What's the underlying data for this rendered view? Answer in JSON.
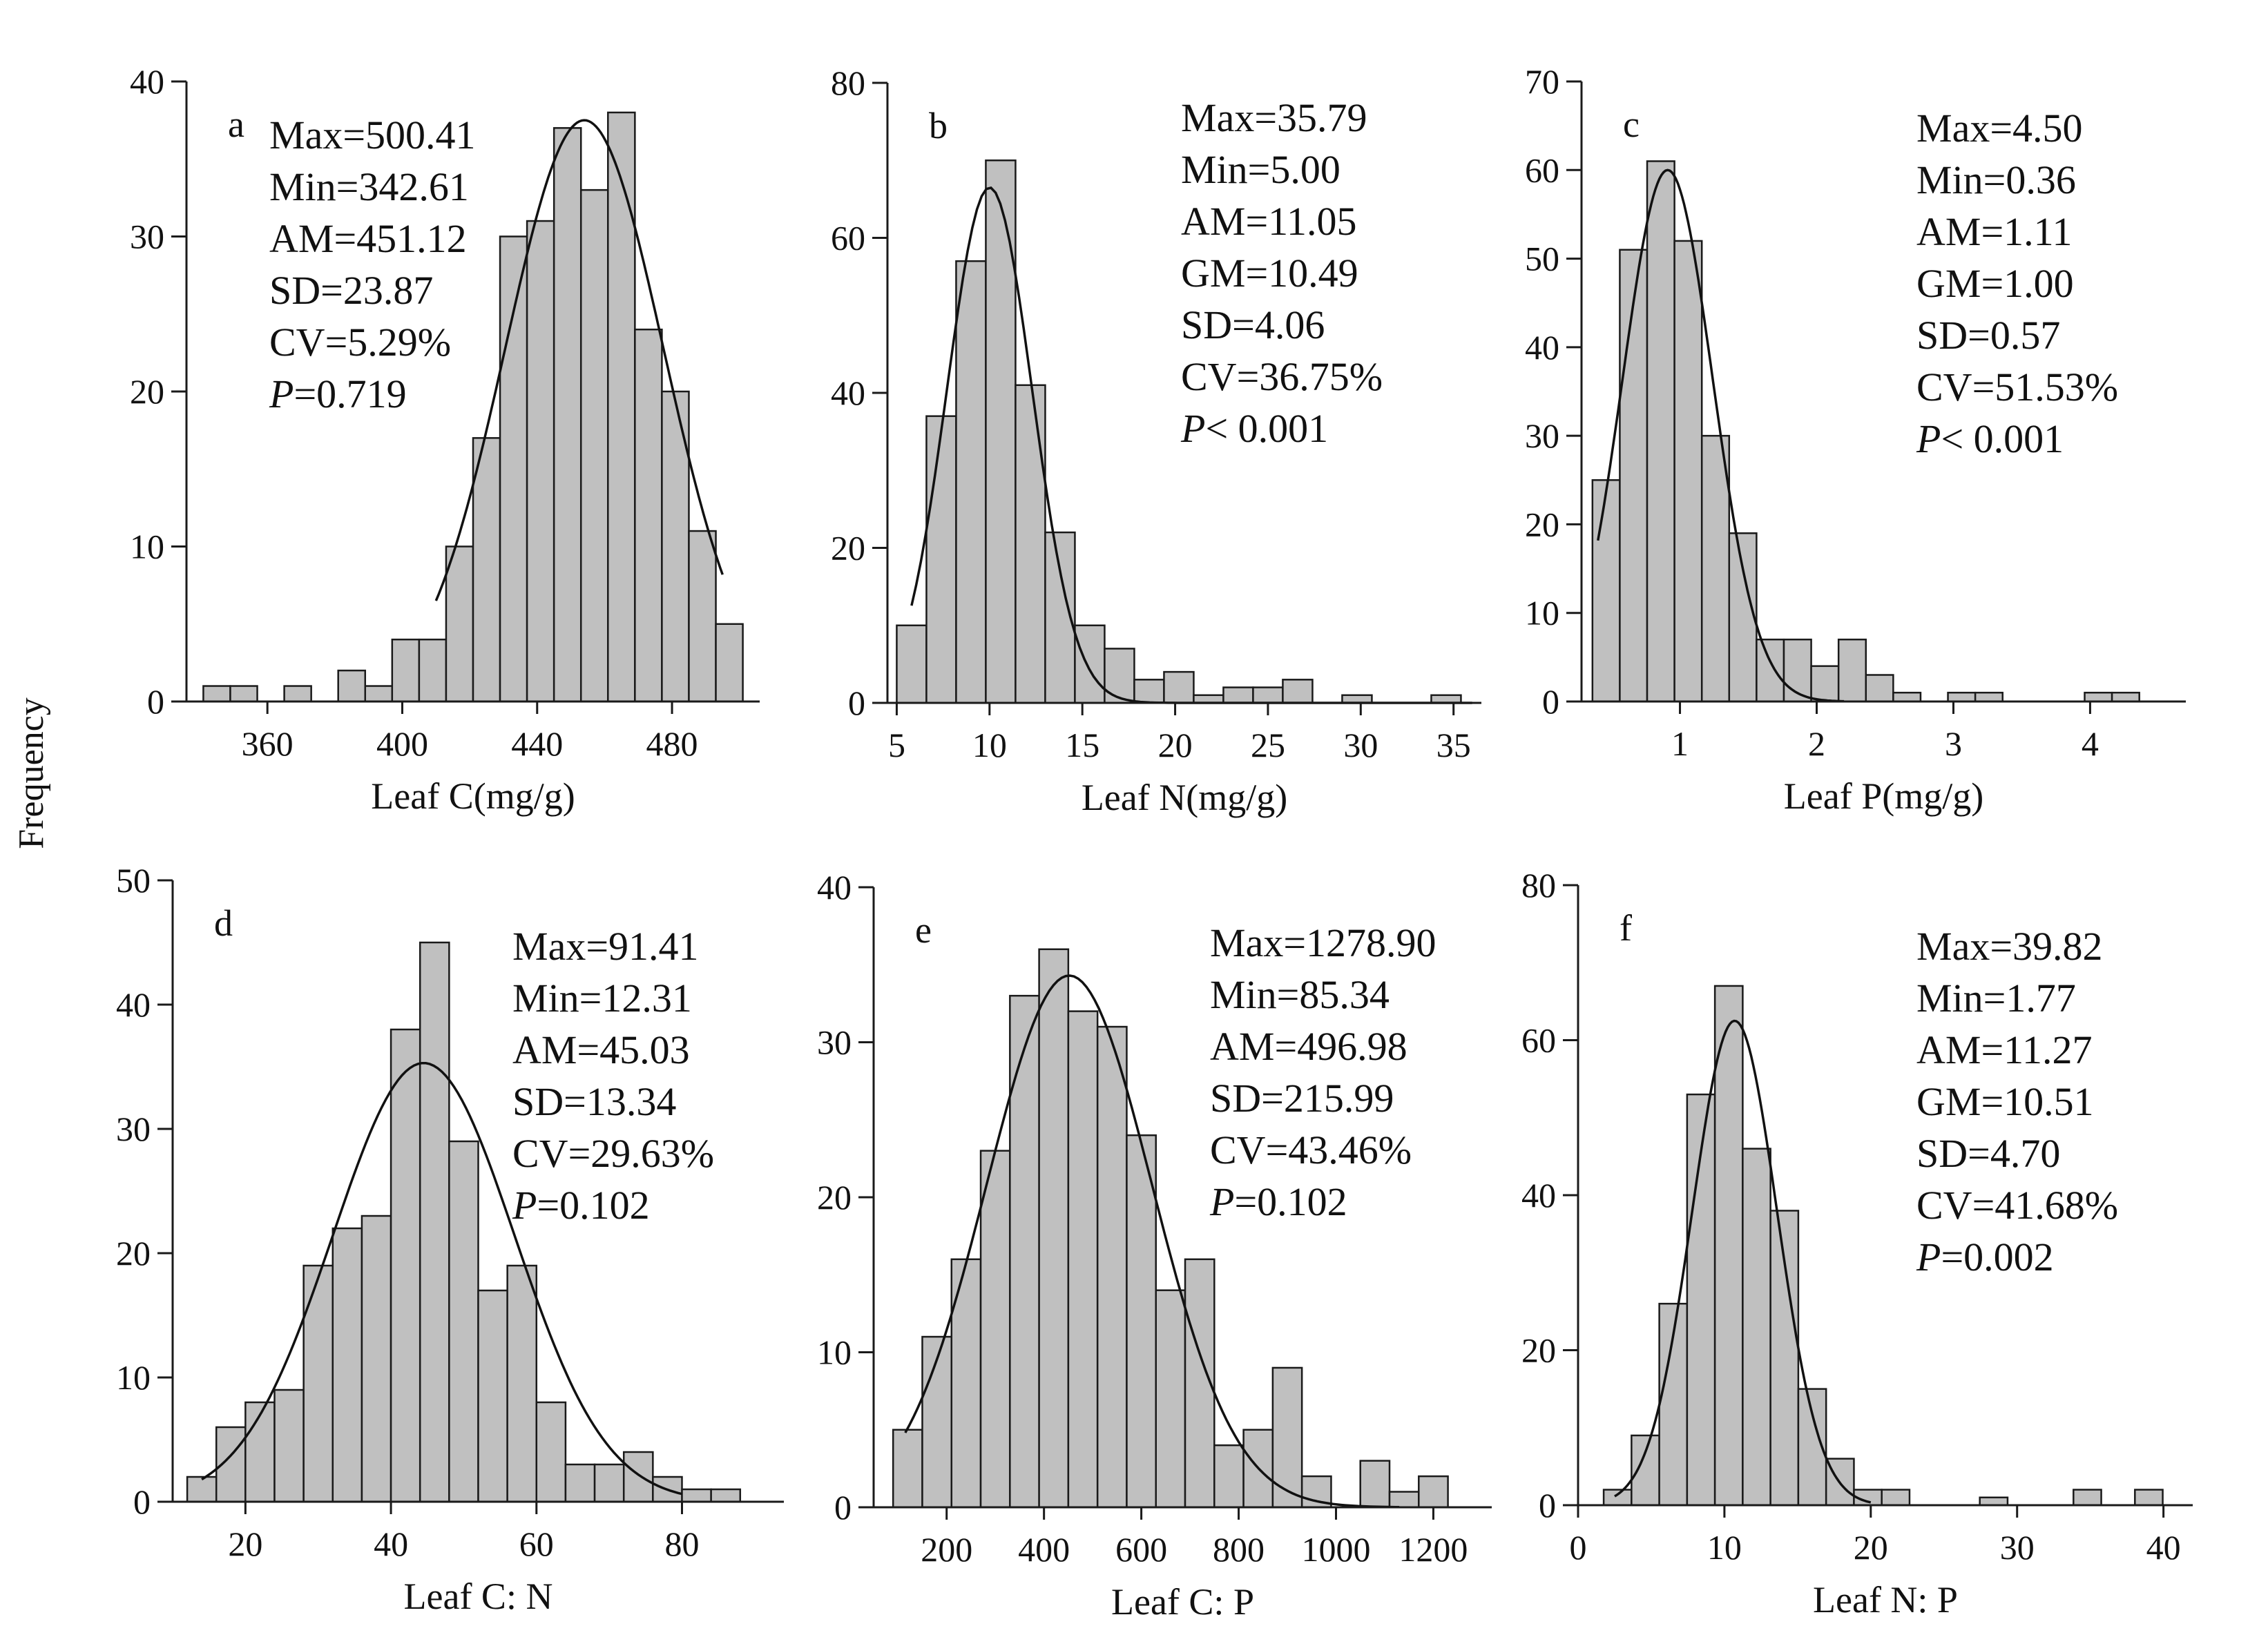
{
  "figure": {
    "ylabel": "Frequency",
    "colors": {
      "bar_fill": "#c0c0c0",
      "bar_stroke": "#1a1a1a",
      "axis": "#1a1a1a",
      "curve": "#111111"
    }
  },
  "chart_data": [
    {
      "panel": "a",
      "type": "bar",
      "xlabel": "Leaf C(mg/g)",
      "ylabel": "",
      "xlim": [
        336,
        506
      ],
      "ylim": [
        0,
        40
      ],
      "xticks": [
        360,
        400,
        440,
        480
      ],
      "yticks": [
        0,
        10,
        20,
        30,
        40
      ],
      "bin_width": 8,
      "bins": [
        {
          "x": 345,
          "count": 1
        },
        {
          "x": 353,
          "count": 1
        },
        {
          "x": 369,
          "count": 1
        },
        {
          "x": 385,
          "count": 2
        },
        {
          "x": 393,
          "count": 1
        },
        {
          "x": 401,
          "count": 4
        },
        {
          "x": 409,
          "count": 4
        },
        {
          "x": 417,
          "count": 10
        },
        {
          "x": 425,
          "count": 17
        },
        {
          "x": 433,
          "count": 30
        },
        {
          "x": 441,
          "count": 31
        },
        {
          "x": 449,
          "count": 37
        },
        {
          "x": 457,
          "count": 33
        },
        {
          "x": 465,
          "count": 38
        },
        {
          "x": 473,
          "count": 24
        },
        {
          "x": 481,
          "count": 20
        },
        {
          "x": 489,
          "count": 11
        },
        {
          "x": 497,
          "count": 5
        }
      ],
      "curve": {
        "mean": 454,
        "sd": 23.5,
        "peak": 37.5,
        "x_range": [
          410,
          495
        ]
      },
      "stats": [
        "Max=500.41",
        "Min=342.61",
        "AM=451.12",
        "SD=23.87",
        "CV=5.29%",
        "P=0.719"
      ],
      "grid": false,
      "legend": "none"
    },
    {
      "panel": "b",
      "type": "bar",
      "xlabel": "Leaf N(mg/g)",
      "ylabel": "",
      "xlim": [
        4.5,
        36.5
      ],
      "ylim": [
        0,
        80
      ],
      "xticks": [
        5,
        10,
        15,
        20,
        25,
        30,
        35
      ],
      "yticks": [
        0,
        20,
        40,
        60,
        80
      ],
      "bin_width": 1.6,
      "bins": [
        {
          "x": 5.8,
          "count": 10
        },
        {
          "x": 7.4,
          "count": 37
        },
        {
          "x": 9.0,
          "count": 57
        },
        {
          "x": 10.6,
          "count": 70
        },
        {
          "x": 12.2,
          "count": 41
        },
        {
          "x": 13.8,
          "count": 22
        },
        {
          "x": 15.4,
          "count": 10
        },
        {
          "x": 17.0,
          "count": 7
        },
        {
          "x": 18.6,
          "count": 3
        },
        {
          "x": 20.2,
          "count": 4
        },
        {
          "x": 21.8,
          "count": 1
        },
        {
          "x": 23.4,
          "count": 2
        },
        {
          "x": 25.0,
          "count": 2
        },
        {
          "x": 26.6,
          "count": 3
        },
        {
          "x": 29.8,
          "count": 1
        },
        {
          "x": 34.6,
          "count": 1
        }
      ],
      "curve": {
        "mean": 10.0,
        "sd": 2.3,
        "peak": 66.5,
        "x_range": [
          5.8,
          36
        ]
      },
      "stats": [
        "Max=35.79",
        "Min=5.00",
        "AM=11.05",
        "GM=10.49",
        "SD=4.06",
        "CV=36.75%",
        "P< 0.001"
      ],
      "grid": false,
      "legend": "none"
    },
    {
      "panel": "c",
      "type": "bar",
      "xlabel": "Leaf P(mg/g)",
      "ylabel": "",
      "xlim": [
        0.28,
        4.7
      ],
      "ylim": [
        0,
        70
      ],
      "xticks": [
        1,
        2,
        3,
        4
      ],
      "yticks": [
        0,
        10,
        20,
        30,
        40,
        50,
        60,
        70
      ],
      "bin_width": 0.2,
      "bins": [
        {
          "x": 0.46,
          "count": 25
        },
        {
          "x": 0.66,
          "count": 51
        },
        {
          "x": 0.86,
          "count": 61
        },
        {
          "x": 1.06,
          "count": 52
        },
        {
          "x": 1.26,
          "count": 30
        },
        {
          "x": 1.46,
          "count": 19
        },
        {
          "x": 1.66,
          "count": 7
        },
        {
          "x": 1.86,
          "count": 7
        },
        {
          "x": 2.06,
          "count": 4
        },
        {
          "x": 2.26,
          "count": 7
        },
        {
          "x": 2.46,
          "count": 3
        },
        {
          "x": 2.66,
          "count": 1
        },
        {
          "x": 3.06,
          "count": 1
        },
        {
          "x": 3.26,
          "count": 1
        },
        {
          "x": 4.06,
          "count": 1
        },
        {
          "x": 4.26,
          "count": 1
        }
      ],
      "curve": {
        "mean": 0.91,
        "sd": 0.33,
        "peak": 60,
        "x_range": [
          0.4,
          2.2
        ]
      },
      "stats": [
        "Max=4.50",
        "Min=0.36",
        "AM=1.11",
        "GM=1.00",
        "SD=0.57",
        "CV=51.53%",
        "P< 0.001"
      ],
      "grid": false,
      "legend": "none"
    },
    {
      "panel": "d",
      "type": "bar",
      "xlabel": "Leaf C: N",
      "ylabel": "",
      "xlim": [
        10,
        94
      ],
      "ylim": [
        0,
        50
      ],
      "xticks": [
        20,
        40,
        60,
        80
      ],
      "yticks": [
        0,
        10,
        20,
        30,
        40,
        50
      ],
      "bin_width": 4,
      "bins": [
        {
          "x": 14,
          "count": 2
        },
        {
          "x": 18,
          "count": 6
        },
        {
          "x": 22,
          "count": 8
        },
        {
          "x": 26,
          "count": 9
        },
        {
          "x": 30,
          "count": 19
        },
        {
          "x": 34,
          "count": 22
        },
        {
          "x": 38,
          "count": 23
        },
        {
          "x": 42,
          "count": 38
        },
        {
          "x": 46,
          "count": 45
        },
        {
          "x": 50,
          "count": 29
        },
        {
          "x": 54,
          "count": 17
        },
        {
          "x": 58,
          "count": 19
        },
        {
          "x": 62,
          "count": 8
        },
        {
          "x": 66,
          "count": 3
        },
        {
          "x": 70,
          "count": 3
        },
        {
          "x": 74,
          "count": 4
        },
        {
          "x": 78,
          "count": 2
        },
        {
          "x": 82,
          "count": 1
        },
        {
          "x": 86,
          "count": 1
        }
      ],
      "curve": {
        "mean": 44.5,
        "sd": 12.5,
        "peak": 35.3,
        "x_range": [
          14,
          80
        ]
      },
      "stats": [
        "Max=91.41",
        "Min=12.31",
        "AM=45.03",
        "SD=13.34",
        "CV=29.63%",
        "P=0.102"
      ],
      "grid": false,
      "legend": "none"
    },
    {
      "panel": "e",
      "type": "bar",
      "xlabel": "Leaf C: P",
      "ylabel": "",
      "xlim": [
        50,
        1320
      ],
      "ylim": [
        0,
        40
      ],
      "xticks": [
        200,
        400,
        600,
        800,
        1000,
        1200
      ],
      "yticks": [
        0,
        10,
        20,
        30,
        40
      ],
      "bin_width": 60,
      "bins": [
        {
          "x": 120,
          "count": 5
        },
        {
          "x": 180,
          "count": 11
        },
        {
          "x": 240,
          "count": 16
        },
        {
          "x": 300,
          "count": 23
        },
        {
          "x": 360,
          "count": 33
        },
        {
          "x": 420,
          "count": 36
        },
        {
          "x": 480,
          "count": 32
        },
        {
          "x": 540,
          "count": 31
        },
        {
          "x": 600,
          "count": 24
        },
        {
          "x": 660,
          "count": 14
        },
        {
          "x": 720,
          "count": 16
        },
        {
          "x": 780,
          "count": 4
        },
        {
          "x": 840,
          "count": 5
        },
        {
          "x": 900,
          "count": 9
        },
        {
          "x": 960,
          "count": 2
        },
        {
          "x": 1080,
          "count": 3
        },
        {
          "x": 1140,
          "count": 1
        },
        {
          "x": 1200,
          "count": 2
        }
      ],
      "curve": {
        "mean": 452,
        "sd": 170,
        "peak": 34.3,
        "x_range": [
          115,
          1130
        ]
      },
      "stats": [
        "Max=1278.90",
        "Min=85.34",
        "AM=496.98",
        "SD=215.99",
        "CV=43.46%",
        "P=0.102"
      ],
      "grid": false,
      "legend": "none"
    },
    {
      "panel": "f",
      "type": "bar",
      "xlabel": "Leaf N: P",
      "ylabel": "",
      "xlim": [
        0,
        42
      ],
      "ylim": [
        0,
        80
      ],
      "xticks": [
        0,
        10,
        20,
        30,
        40
      ],
      "yticks": [
        0,
        20,
        40,
        60,
        80
      ],
      "bin_width": 1.9,
      "bins": [
        {
          "x": 2.7,
          "count": 2
        },
        {
          "x": 4.6,
          "count": 9
        },
        {
          "x": 6.5,
          "count": 26
        },
        {
          "x": 8.4,
          "count": 53
        },
        {
          "x": 10.3,
          "count": 67
        },
        {
          "x": 12.2,
          "count": 46
        },
        {
          "x": 14.1,
          "count": 38
        },
        {
          "x": 16.0,
          "count": 15
        },
        {
          "x": 17.9,
          "count": 6
        },
        {
          "x": 19.8,
          "count": 2
        },
        {
          "x": 21.7,
          "count": 2
        },
        {
          "x": 28.4,
          "count": 1
        },
        {
          "x": 34.8,
          "count": 2
        },
        {
          "x": 39.0,
          "count": 2
        }
      ],
      "curve": {
        "mean": 10.7,
        "sd": 2.9,
        "peak": 62.5,
        "x_range": [
          2.5,
          20
        ]
      },
      "stats": [
        "Max=39.82",
        "Min=1.77",
        "AM=11.27",
        "GM=10.51",
        "SD=4.70",
        "CV=41.68%",
        "P=0.002"
      ],
      "grid": false,
      "legend": "none"
    }
  ]
}
